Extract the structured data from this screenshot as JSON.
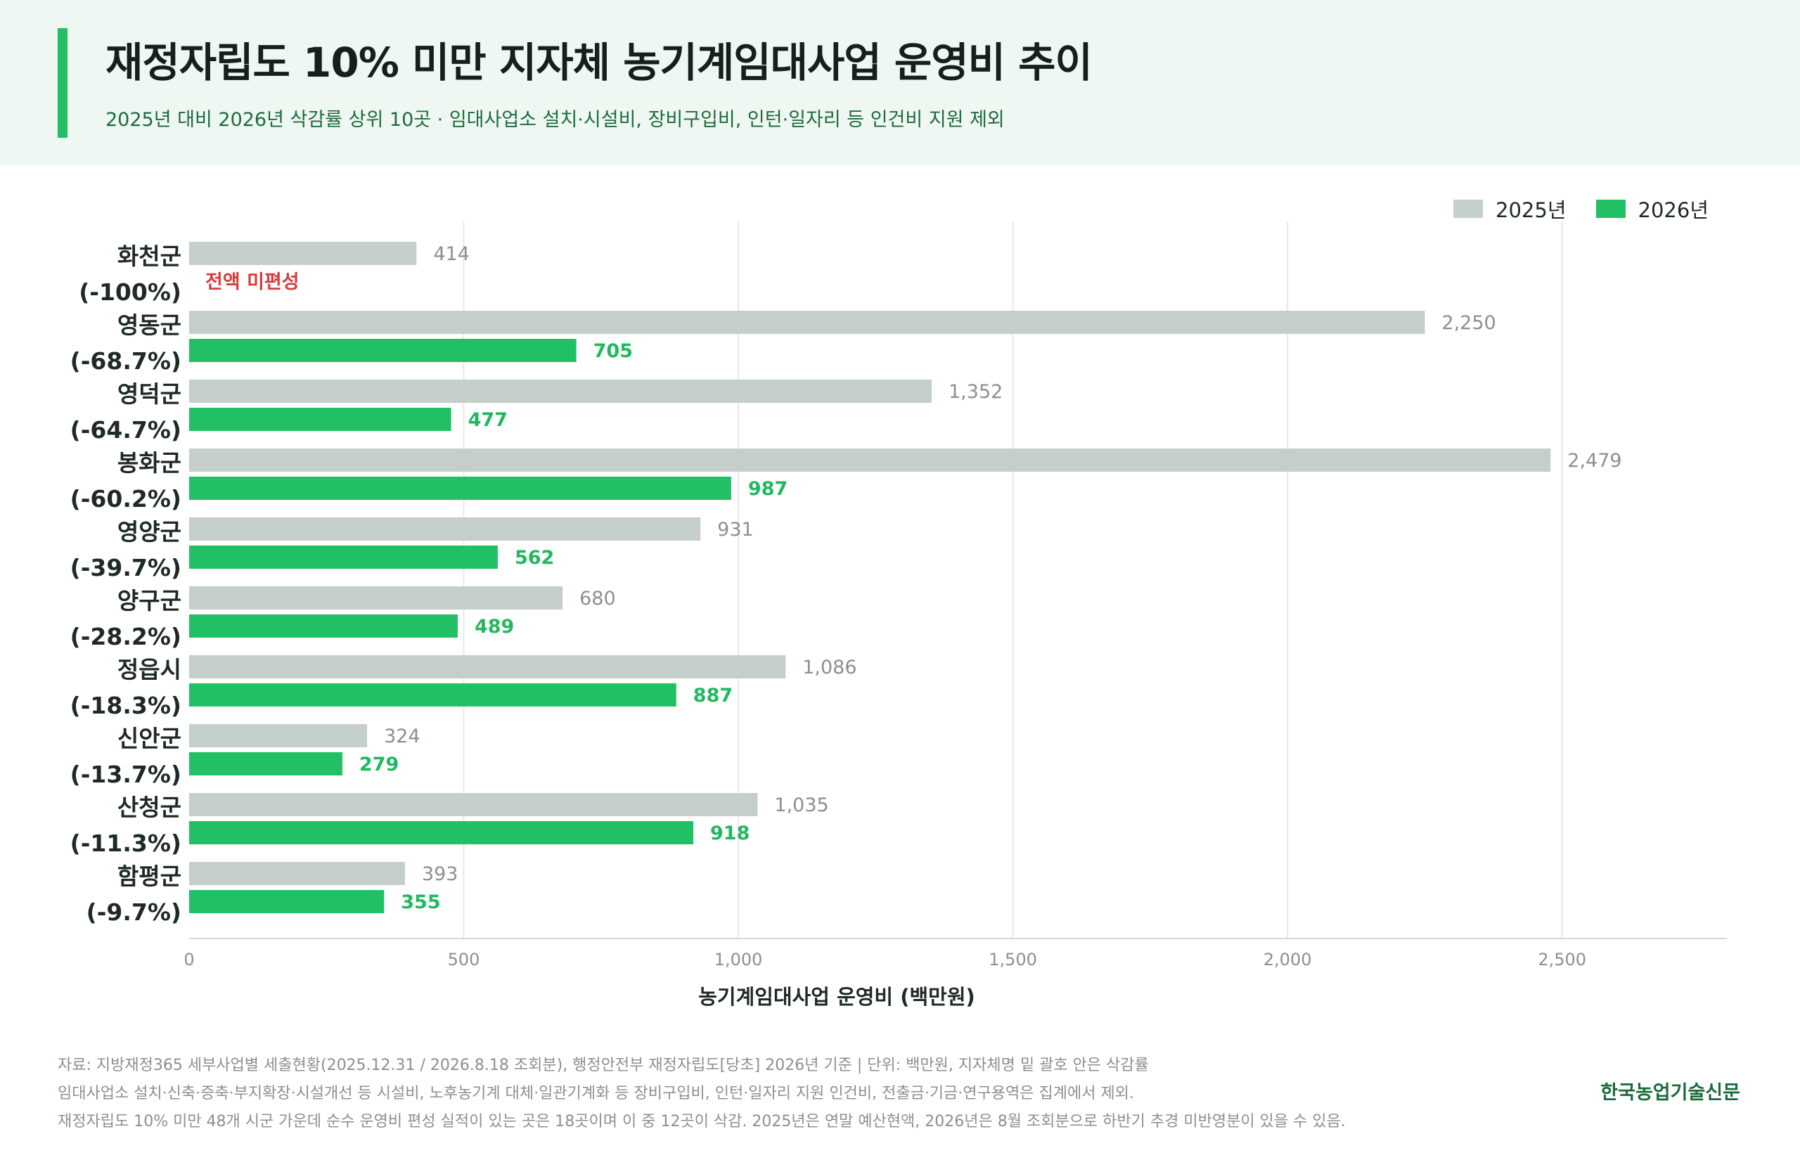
{
  "header": {
    "title": "재정자립도 10% 미만 지자체 농기계임대사업 운영비 추이",
    "subtitle": "2025년 대비 2026년 삭감률 상위 10곳  ·  임대사업소 설치·시설비, 장비구입비, 인턴·일자리 등 인건비 지원 제외"
  },
  "legend": {
    "items": [
      {
        "label": "2025년",
        "color": "#c5cfc9"
      },
      {
        "label": "2026년",
        "color": "#22c065"
      }
    ]
  },
  "colors": {
    "bar_2025": "#c5cfc9",
    "bar_2026": "#22c065",
    "label_2025": "#8a918c",
    "label_2026": "#22b85f",
    "note_red": "#d83a3a",
    "grid": "#e6e8e7"
  },
  "chart_data": {
    "type": "bar",
    "orientation": "horizontal",
    "categories": [
      "화천군",
      "영동군",
      "영덕군",
      "봉화군",
      "영양군",
      "양구군",
      "정읍시",
      "신안군",
      "산청군",
      "함평군"
    ],
    "category_changes": [
      "(-100%)",
      "(-68.7%)",
      "(-64.7%)",
      "(-60.2%)",
      "(-39.7%)",
      "(-28.2%)",
      "(-18.3%)",
      "(-13.7%)",
      "(-11.3%)",
      "(-9.7%)"
    ],
    "series": [
      {
        "name": "2025년",
        "values": [
          414,
          2250,
          1352,
          2479,
          931,
          680,
          1086,
          324,
          1035,
          393
        ]
      },
      {
        "name": "2026년",
        "values": [
          0,
          705,
          477,
          987,
          562,
          489,
          887,
          279,
          918,
          355
        ]
      }
    ],
    "value_labels_2025": [
      "414",
      "2,250",
      "1,352",
      "2,479",
      "931",
      "680",
      "1,086",
      "324",
      "1,035",
      "393"
    ],
    "value_labels_2026": [
      "",
      "705",
      "477",
      "987",
      "562",
      "489",
      "887",
      "279",
      "918",
      "355"
    ],
    "annotations": [
      {
        "category": "화천군",
        "text": "전액 미편성"
      }
    ],
    "xlabel": "농기계임대사업 운영비 (백만원)",
    "xlim": [
      0,
      2800
    ],
    "xticks": [
      0,
      500,
      1000,
      1500,
      2000,
      2500
    ],
    "xtick_labels": [
      "0",
      "500",
      "1,000",
      "1,500",
      "2,000",
      "2,500"
    ],
    "grid": "vertical"
  },
  "footer": {
    "line1": "자료: 지방재정365 세부사업별 세출현황(2025.12.31 / 2026.8.18 조회분), 행정안전부 재정자립도[당초] 2026년 기준  |  단위: 백만원, 지자체명 밑 괄호 안은 삭감률",
    "line2": "임대사업소 설치·신축·증축·부지확장·시설개선 등 시설비, 노후농기계 대체·일관기계화 등 장비구입비, 인턴·일자리 지원 인건비, 전출금·기금·연구용역은 집계에서 제외.",
    "line3": "재정자립도 10% 미만 48개 시군 가운데 순수 운영비 편성 실적이 있는 곳은 18곳이며 이 중 12곳이 삭감. 2025년은 연말 예산현액, 2026년은 8월 조회분으로 하반기 추경 미반영분이 있을 수 있음.",
    "brand": "한국농업기술신문"
  }
}
